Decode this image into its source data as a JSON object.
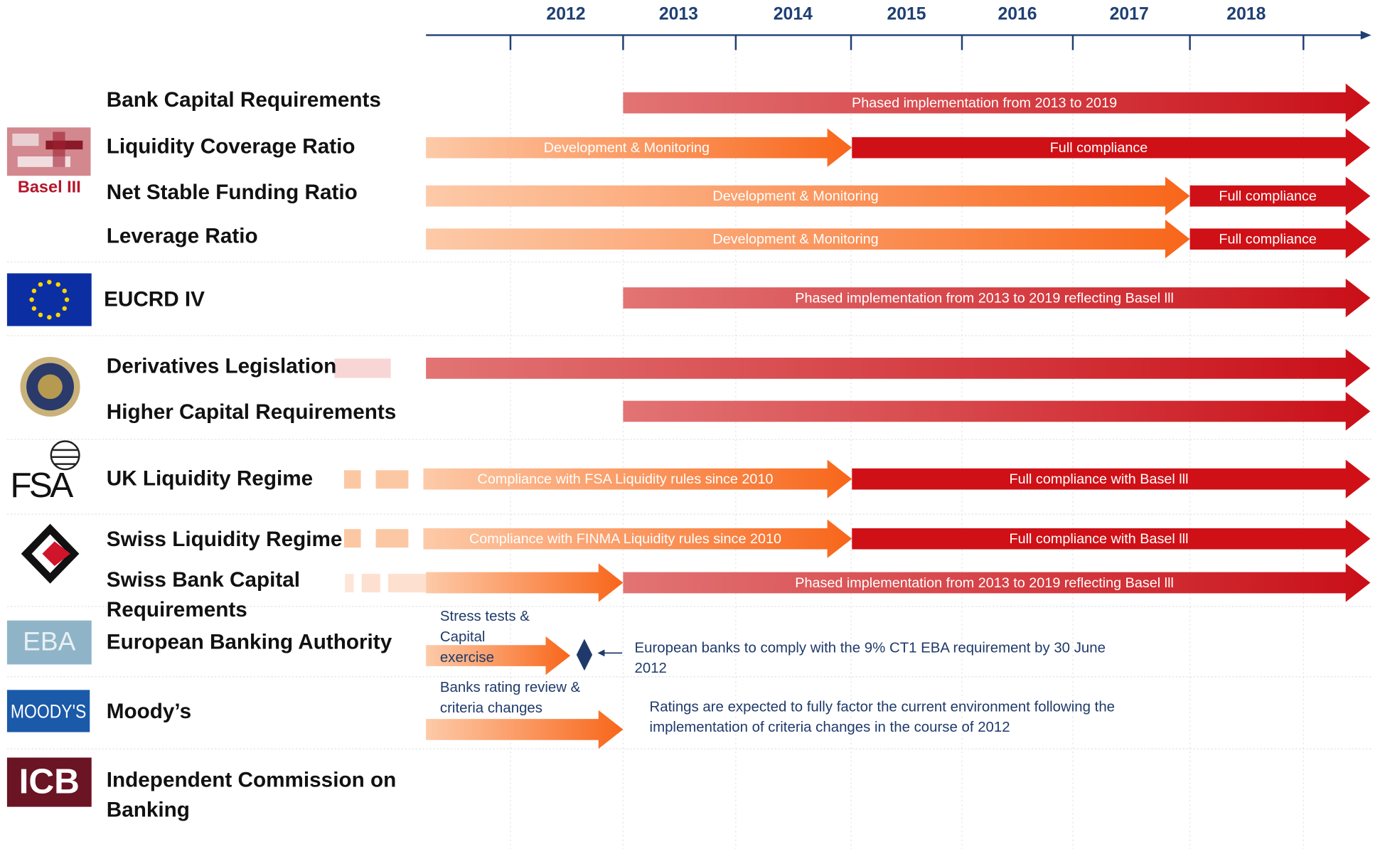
{
  "axis": {
    "years": [
      "2012",
      "2013",
      "2014",
      "2015",
      "2016",
      "2017",
      "2018"
    ]
  },
  "logos": {
    "basel": "Basel III",
    "fsa": "FSA",
    "eba": "EBA",
    "moodys": "MOODY'S",
    "icb": "ICB"
  },
  "rows": [
    {
      "label": [
        "Bank Capital Requirements"
      ],
      "arrow_texts": [
        "Phased implementation from 2013 to 2019"
      ]
    },
    {
      "label": [
        "Liquidity Coverage Ratio"
      ],
      "arrow_texts": [
        "Development & Monitoring",
        "Full compliance"
      ]
    },
    {
      "label": [
        "Net Stable Funding Ratio"
      ],
      "arrow_texts": [
        "Development & Monitoring",
        "Full compliance"
      ]
    },
    {
      "label": [
        "Leverage Ratio"
      ],
      "arrow_texts": [
        "Development & Monitoring",
        "Full compliance"
      ]
    },
    {
      "label": [
        "EUCRD IV"
      ],
      "arrow_texts": [
        "Phased implementation from 2013 to 2019 reflecting Basel lll"
      ]
    },
    {
      "label": [
        "Derivatives Legislation"
      ],
      "arrow_texts": []
    },
    {
      "label": [
        "Higher Capital Requirements"
      ],
      "arrow_texts": []
    },
    {
      "label": [
        "UK Liquidity Regime"
      ],
      "arrow_texts": [
        "Compliance with FSA Liquidity rules since 2010",
        "Full compliance with Basel lll"
      ]
    },
    {
      "label": [
        "Swiss Liquidity Regime"
      ],
      "arrow_texts": [
        "Compliance with FINMA Liquidity rules since 2010",
        "Full compliance with Basel lll"
      ]
    },
    {
      "label": [
        "Swiss Bank Capital",
        "Requirements"
      ],
      "arrow_texts": [
        "Phased implementation from 2013 to 2019 reflecting Basel lll"
      ]
    },
    {
      "label": [
        "European Banking Authority"
      ],
      "arrow_texts": [],
      "note": [
        "Stress tests &",
        "Capital",
        "exercise"
      ],
      "callout": [
        "European banks to comply with the 9% CT1 EBA requirement by 30 June",
        "2012"
      ]
    },
    {
      "label": [
        "Moody’s"
      ],
      "arrow_texts": [],
      "note": [
        "Banks rating review &",
        "criteria changes"
      ],
      "callout": [
        "Ratings are expected to fully factor the current environment following the",
        "implementation of criteria changes in the course of 2012"
      ]
    },
    {
      "label": [
        "Independent Commission on",
        "Banking"
      ],
      "arrow_texts": []
    }
  ]
}
